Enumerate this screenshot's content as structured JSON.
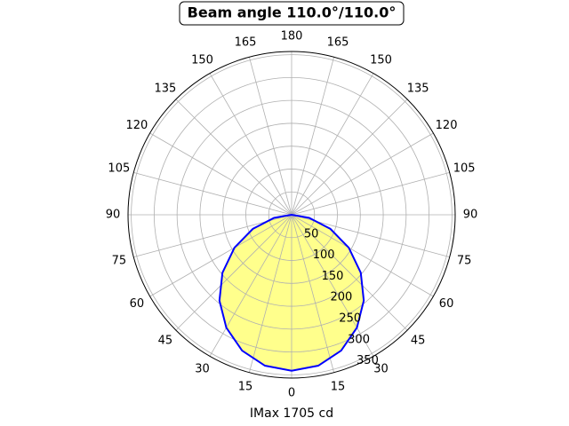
{
  "chart_data": {
    "type": "polar",
    "title": "Beam angle 110.0°/110.0°",
    "x_label": "IMax 1705 cd",
    "x": [
      -90,
      -80,
      -70,
      -60,
      -50,
      -40,
      -30,
      -20,
      -10,
      0,
      10,
      20,
      30,
      40,
      50,
      60,
      70,
      80,
      90
    ],
    "series": [
      {
        "color": "#0000ff",
        "fill": "#ffff80",
        "values": [
          0,
          39,
          90,
          144,
          197,
          245,
          285,
          316,
          335,
          341,
          335,
          316,
          285,
          245,
          197,
          144,
          90,
          39,
          0
        ]
      }
    ],
    "ylim": [
      0,
      357
    ],
    "yticks": [
      50,
      100,
      150,
      200,
      250,
      300,
      350
    ],
    "xticks": [
      {
        "value": -165,
        "label": "165"
      },
      {
        "value": -150,
        "label": "150"
      },
      {
        "value": -135,
        "label": "135"
      },
      {
        "value": -120,
        "label": "120"
      },
      {
        "value": -105,
        "label": "105"
      },
      {
        "value": -90,
        "label": "90"
      },
      {
        "value": -75,
        "label": "75"
      },
      {
        "value": -60,
        "label": "60"
      },
      {
        "value": -45,
        "label": "45"
      },
      {
        "value": -30,
        "label": "30"
      },
      {
        "value": -15,
        "label": "15"
      },
      0,
      15,
      30,
      45,
      60,
      75,
      90,
      105,
      120,
      135,
      150,
      165,
      180
    ],
    "grid": true
  }
}
